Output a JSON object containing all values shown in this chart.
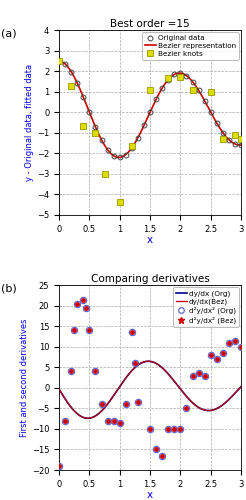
{
  "title_top": "Best order =15",
  "title_b": "Comparing derivatives",
  "orig_x": [
    0.0,
    0.1,
    0.2,
    0.3,
    0.4,
    0.5,
    0.6,
    0.7,
    0.8,
    0.9,
    1.0,
    1.1,
    1.2,
    1.3,
    1.4,
    1.5,
    1.6,
    1.7,
    1.8,
    1.9,
    2.0,
    2.1,
    2.2,
    2.3,
    2.4,
    2.5,
    2.6,
    2.7,
    2.8,
    2.9,
    3.0
  ],
  "bezier_knots_x": [
    0.0,
    0.2,
    0.4,
    0.6,
    0.75,
    1.0,
    1.2,
    1.5,
    1.8,
    2.0,
    2.2,
    2.5,
    2.7,
    2.9,
    3.0
  ],
  "bezier_knots_y": [
    2.5,
    1.25,
    -0.65,
    -1.0,
    -3.0,
    -4.35,
    -1.65,
    1.1,
    1.65,
    1.7,
    1.1,
    1.0,
    -1.3,
    -1.1,
    -1.3
  ],
  "ylabel_a": "y - Original data, fitted data",
  "xlabel_a": "x",
  "ylim_a": [
    -5,
    4
  ],
  "xlim_a": [
    0,
    3
  ],
  "yticks_a": [
    -5,
    -4,
    -3,
    -2,
    -1,
    0,
    1,
    2,
    3,
    4
  ],
  "xticks_a": [
    0,
    0.5,
    1.0,
    1.5,
    2.0,
    2.5,
    3.0
  ],
  "xticklabels_a": [
    "0",
    "0.5",
    "1",
    "1.5",
    "2",
    "2.5",
    "3"
  ],
  "ylabel_b": "First and second derivatives",
  "xlabel_b": "x",
  "ylim_b": [
    -20,
    25
  ],
  "xlim_b": [
    0,
    3
  ],
  "yticks_b": [
    -20,
    -15,
    -10,
    -5,
    0,
    5,
    10,
    15,
    20,
    25
  ],
  "xticks_b": [
    0,
    0.5,
    1.0,
    1.5,
    2.0,
    2.5,
    3.0
  ],
  "xticklabels_b": [
    "0",
    "0.5",
    "1",
    "1.5",
    "2",
    "2.5",
    "3"
  ],
  "legend_a_labels": [
    "Original data",
    "Bezier representation",
    "Bezier knots"
  ],
  "legend_b_labels": [
    "dy/dx (Org)",
    "dy/dx(Bez)",
    "d²y/dx² (Org)",
    "d²y/dx² (Bez)"
  ],
  "color_red": "#cc0000",
  "color_dark_blue": "#00008B",
  "color_yellow": "#dddd00",
  "color_blue_circle": "#6666cc",
  "color_red_star": "#cc0000",
  "d2_scatter_x": [
    0.0,
    0.1,
    0.2,
    0.25,
    0.3,
    0.4,
    0.45,
    0.5,
    0.6,
    0.7,
    0.8,
    0.9,
    1.0,
    1.1,
    1.2,
    1.25,
    1.3,
    1.5,
    1.6,
    1.7,
    1.8,
    1.9,
    2.0,
    2.1,
    2.2,
    2.3,
    2.4,
    2.5,
    2.6,
    2.7,
    2.8,
    2.9,
    3.0
  ],
  "d2_scatter_y": [
    -19.0,
    -8.0,
    4.0,
    14.0,
    20.5,
    21.5,
    19.5,
    14.0,
    4.0,
    -4.0,
    -8.0,
    -8.0,
    -8.5,
    -4.0,
    13.5,
    6.0,
    -3.5,
    -10.0,
    -15.0,
    -16.5,
    -10.0,
    -10.0,
    -10.0,
    -5.0,
    3.0,
    3.5,
    3.0,
    8.0,
    7.0,
    8.5,
    11.0,
    11.5,
    10.0
  ]
}
